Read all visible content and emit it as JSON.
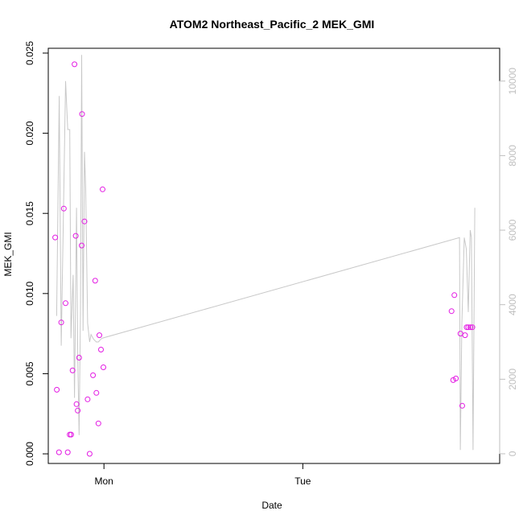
{
  "chart_data": {
    "type": "scatter",
    "title": "ATOM2 Northeast_Pacific_2 MEK_GMI",
    "xlabel": "Date",
    "ylabel": "MEK_GMI",
    "x_tick_labels": [
      "Mon",
      "Tue"
    ],
    "x_ticks": [
      1.0,
      2.0
    ],
    "xlim": [
      0.72,
      2.99
    ],
    "ylim": [
      -0.0006,
      0.0253
    ],
    "y_ticks": [
      0.0,
      0.005,
      0.01,
      0.015,
      0.02,
      0.025
    ],
    "y_tick_labels": [
      "0.000",
      "0.005",
      "0.010",
      "0.015",
      "0.020",
      "0.025"
    ],
    "y2_ticks": [
      0,
      2000,
      4000,
      6000,
      8000,
      10000
    ],
    "y2_tick_labels": [
      "0",
      "2000",
      "4000",
      "6000",
      "8000",
      "10000"
    ],
    "y2lim": [
      -260,
      10880
    ],
    "grid": false,
    "legend": "none",
    "series": [
      {
        "kind": "points",
        "color": "#e31ae3",
        "x": [
          0.755,
          0.763,
          0.774,
          0.785,
          0.798,
          0.807,
          0.818,
          0.828,
          0.835,
          0.842,
          0.852,
          0.858,
          0.862,
          0.868,
          0.875,
          0.888,
          0.89,
          0.902,
          0.918,
          0.928,
          0.945,
          0.956,
          0.962,
          0.972,
          0.977,
          0.985,
          0.993,
          0.997,
          2.748,
          2.756,
          2.762,
          2.77,
          2.793,
          2.802,
          2.816,
          2.824,
          2.832,
          2.843,
          2.853
        ],
        "y": [
          0.0135,
          0.004,
          0.0001,
          0.0082,
          0.0153,
          0.0094,
          0.0001,
          0.0012,
          0.0012,
          0.0052,
          0.0243,
          0.0136,
          0.0031,
          0.0027,
          0.006,
          0.013,
          0.0212,
          0.0145,
          0.0034,
          0.0,
          0.0049,
          0.0108,
          0.0038,
          0.0019,
          0.0074,
          0.0065,
          0.0165,
          0.0054,
          0.0089,
          0.0046,
          0.0099,
          0.0047,
          0.0075,
          0.003,
          0.0074,
          0.0079,
          0.0079,
          0.0079,
          0.0079
        ]
      },
      {
        "kind": "line",
        "color": "#c8c8c8",
        "axis": "right",
        "x": [
          0.762,
          0.775,
          0.785,
          0.795,
          0.807,
          0.818,
          0.828,
          0.834,
          0.845,
          0.852,
          0.862,
          0.868,
          0.875,
          0.882,
          0.888,
          0.895,
          0.902,
          0.908,
          0.918,
          0.928,
          0.935,
          0.945,
          0.952,
          0.962,
          0.972,
          0.98,
          0.99,
          2.788,
          2.792,
          2.8,
          2.812,
          2.822,
          2.832,
          2.842,
          2.848,
          2.856,
          2.865
        ],
        "y": [
          3700,
          9600,
          2900,
          6000,
          10000,
          8700,
          8700,
          3100,
          4800,
          1500,
          6600,
          2700,
          500,
          3800,
          10700,
          3300,
          8100,
          7100,
          3500,
          3000,
          3200,
          3100,
          3050,
          3000,
          3000,
          3050,
          3100,
          5800,
          100,
          3500,
          5800,
          5500,
          3800,
          6000,
          5800,
          100,
          6600
        ]
      }
    ]
  }
}
